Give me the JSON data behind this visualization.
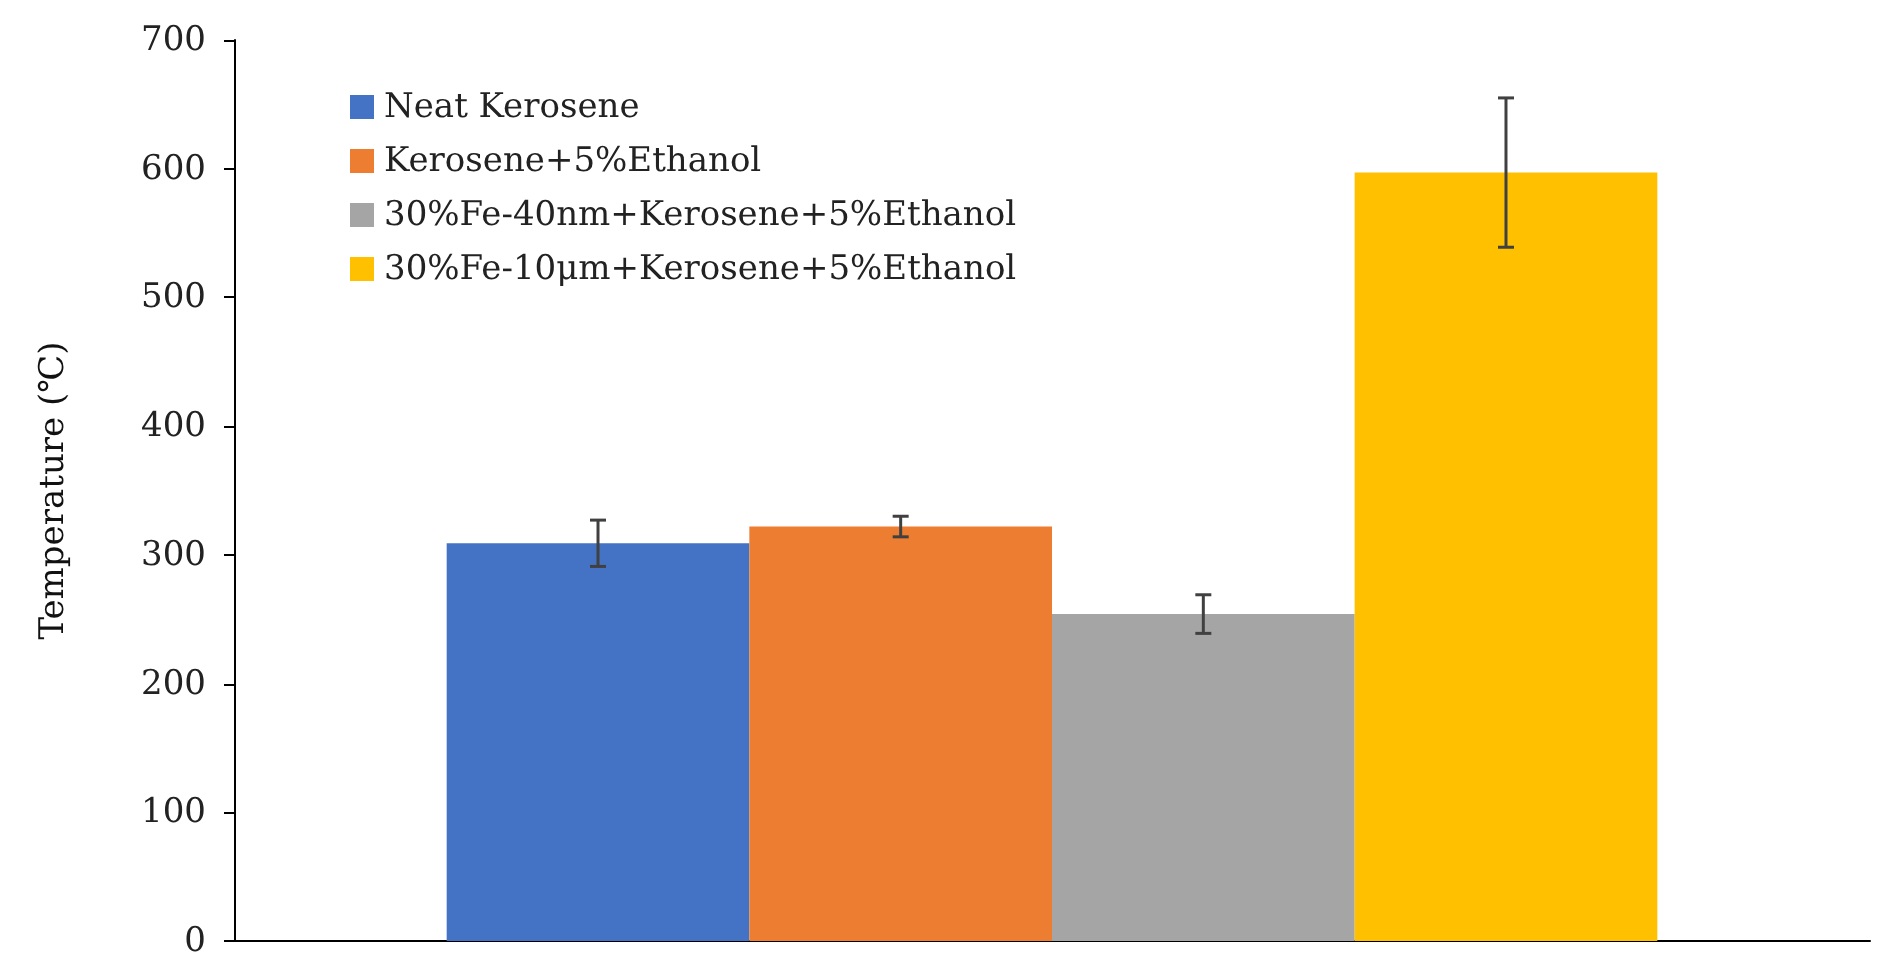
{
  "chart_data": {
    "type": "bar",
    "ylabel": "Temperature (℃)",
    "categories": [
      null
    ],
    "series": [
      {
        "name": "Neat Kerosene",
        "color": "#4472c4",
        "values": [
          309
        ],
        "errors": [
          18
        ]
      },
      {
        "name": "Kerosene+5%Ethanol",
        "color": "#ed7d31",
        "values": [
          322
        ],
        "errors": [
          8
        ]
      },
      {
        "name": "30%Fe-40nm+Kerosene+5%Ethanol",
        "color": "#a5a5a5",
        "values": [
          254
        ],
        "errors": [
          15
        ]
      },
      {
        "name": "30%Fe-10μm+Kerosene+5%Ethanol",
        "color": "#ffc000",
        "values": [
          597
        ],
        "errors": [
          58
        ]
      }
    ],
    "ylim": [
      0,
      700
    ],
    "yticks": [
      0,
      100,
      200,
      300,
      400,
      500,
      600,
      700
    ],
    "grid": false,
    "legend": "top left"
  }
}
